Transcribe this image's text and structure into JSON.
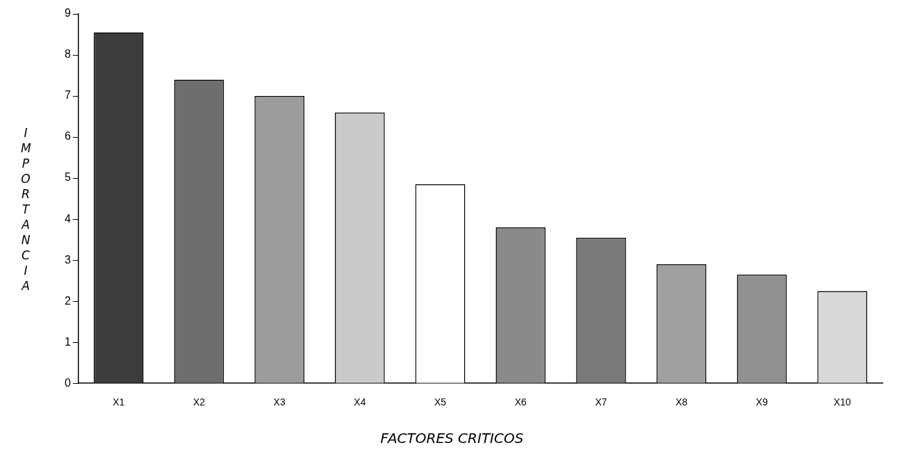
{
  "chart_data": {
    "type": "bar",
    "xlabel": "FACTORES CRITICOS",
    "ylabel": "IMPORTANCIA",
    "categories": [
      "X1",
      "X2",
      "X3",
      "X4",
      "X5",
      "X6",
      "X7",
      "X8",
      "X9",
      "X10"
    ],
    "values": [
      8.55,
      7.4,
      7.0,
      6.6,
      4.85,
      3.8,
      3.55,
      2.9,
      2.65,
      2.25
    ],
    "colors": [
      "#3c3c3c",
      "#6e6e6e",
      "#9c9c9c",
      "#cacaca",
      "#ffffff",
      "#8a8a8a",
      "#7a7a7a",
      "#a0a0a0",
      "#909090",
      "#d8d8d8"
    ],
    "ylim": [
      0,
      9
    ],
    "yticks": [
      0,
      1,
      2,
      3,
      4,
      5,
      6,
      7,
      8,
      9
    ],
    "grid": false,
    "legend": false
  }
}
